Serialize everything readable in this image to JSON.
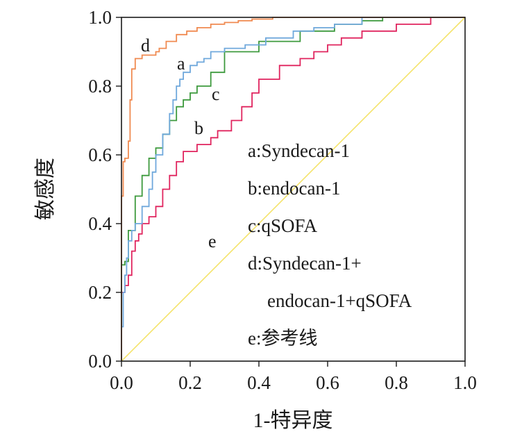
{
  "chart_data": {
    "type": "line",
    "xlabel": "1-特异度",
    "ylabel": "敏感度",
    "xlim": [
      0.0,
      1.0
    ],
    "ylim": [
      0.0,
      1.0
    ],
    "x_ticks": [
      "0.0",
      "0.2",
      "0.4",
      "0.6",
      "0.8",
      "1.0"
    ],
    "y_ticks": [
      "0.0",
      "0.2",
      "0.4",
      "0.6",
      "0.8",
      "1.0"
    ],
    "grid": false,
    "legend_position": "center-right",
    "legend": [
      "a:Syndecan-1",
      "b:endocan-1",
      "c:qSOFA",
      "d:Syndecan-1+",
      "endocan-1+qSOFA",
      "e:参考线"
    ],
    "series": [
      {
        "label": "d",
        "color": "#f08a50",
        "x": [
          0.0,
          0.0,
          0.005,
          0.005,
          0.01,
          0.01,
          0.02,
          0.02,
          0.025,
          0.025,
          0.03,
          0.03,
          0.04,
          0.04,
          0.06,
          0.06,
          0.1,
          0.1,
          0.11,
          0.11,
          0.13,
          0.13,
          0.16,
          0.16,
          0.19,
          0.19,
          0.22,
          0.22,
          0.26,
          0.26,
          0.3,
          0.3,
          0.34,
          0.34,
          0.38,
          0.38,
          0.44,
          0.44,
          0.5,
          0.5,
          0.66,
          0.66,
          1.0
        ],
        "y": [
          0.0,
          0.48,
          0.48,
          0.58,
          0.58,
          0.59,
          0.59,
          0.64,
          0.64,
          0.76,
          0.76,
          0.85,
          0.85,
          0.88,
          0.88,
          0.89,
          0.89,
          0.9,
          0.9,
          0.91,
          0.91,
          0.93,
          0.93,
          0.95,
          0.95,
          0.96,
          0.96,
          0.97,
          0.97,
          0.98,
          0.98,
          0.985,
          0.985,
          0.99,
          0.99,
          0.995,
          0.995,
          1.0,
          1.0,
          1.0,
          1.0,
          1.0,
          1.0
        ]
      },
      {
        "label": "a",
        "color": "#6fa8dc",
        "x": [
          0.0,
          0.0,
          0.005,
          0.005,
          0.01,
          0.01,
          0.015,
          0.015,
          0.02,
          0.02,
          0.03,
          0.03,
          0.04,
          0.04,
          0.06,
          0.06,
          0.08,
          0.08,
          0.09,
          0.09,
          0.1,
          0.1,
          0.12,
          0.12,
          0.14,
          0.14,
          0.15,
          0.15,
          0.16,
          0.16,
          0.17,
          0.17,
          0.18,
          0.18,
          0.2,
          0.2,
          0.22,
          0.22,
          0.24,
          0.24,
          0.26,
          0.26,
          0.3,
          0.3,
          0.36,
          0.36,
          0.42,
          0.42,
          0.5,
          0.5,
          0.56,
          0.56,
          0.62,
          0.62,
          0.7,
          0.7,
          0.76,
          0.76,
          1.0
        ],
        "y": [
          0.0,
          0.1,
          0.1,
          0.2,
          0.2,
          0.25,
          0.25,
          0.3,
          0.3,
          0.35,
          0.35,
          0.38,
          0.38,
          0.4,
          0.4,
          0.45,
          0.45,
          0.5,
          0.5,
          0.55,
          0.55,
          0.6,
          0.6,
          0.66,
          0.66,
          0.72,
          0.72,
          0.76,
          0.76,
          0.8,
          0.8,
          0.82,
          0.82,
          0.84,
          0.84,
          0.86,
          0.86,
          0.87,
          0.87,
          0.88,
          0.88,
          0.9,
          0.9,
          0.91,
          0.91,
          0.92,
          0.92,
          0.94,
          0.94,
          0.96,
          0.96,
          0.97,
          0.97,
          0.98,
          0.98,
          1.0,
          1.0,
          1.0,
          1.0
        ]
      },
      {
        "label": "c",
        "color": "#3d9a3d",
        "x": [
          0.0,
          0.0,
          0.01,
          0.01,
          0.02,
          0.02,
          0.04,
          0.04,
          0.06,
          0.06,
          0.08,
          0.08,
          0.1,
          0.1,
          0.12,
          0.12,
          0.14,
          0.14,
          0.16,
          0.16,
          0.18,
          0.18,
          0.2,
          0.2,
          0.22,
          0.22,
          0.26,
          0.26,
          0.3,
          0.3,
          0.4,
          0.4,
          0.52,
          0.52,
          0.62,
          0.62,
          0.7,
          0.7,
          0.76,
          0.76,
          1.0
        ],
        "y": [
          0.0,
          0.28,
          0.28,
          0.29,
          0.29,
          0.38,
          0.38,
          0.48,
          0.48,
          0.54,
          0.54,
          0.59,
          0.59,
          0.62,
          0.62,
          0.66,
          0.66,
          0.7,
          0.7,
          0.74,
          0.74,
          0.76,
          0.76,
          0.78,
          0.78,
          0.8,
          0.8,
          0.84,
          0.84,
          0.9,
          0.9,
          0.93,
          0.93,
          0.96,
          0.96,
          0.98,
          0.98,
          0.99,
          0.99,
          1.0,
          1.0
        ]
      },
      {
        "label": "b",
        "color": "#e0245e",
        "x": [
          0.0,
          0.0,
          0.01,
          0.01,
          0.02,
          0.02,
          0.03,
          0.03,
          0.04,
          0.04,
          0.05,
          0.05,
          0.06,
          0.06,
          0.08,
          0.08,
          0.1,
          0.1,
          0.12,
          0.12,
          0.14,
          0.14,
          0.16,
          0.16,
          0.18,
          0.18,
          0.22,
          0.22,
          0.26,
          0.26,
          0.28,
          0.28,
          0.32,
          0.32,
          0.35,
          0.35,
          0.38,
          0.38,
          0.4,
          0.4,
          0.46,
          0.46,
          0.52,
          0.52,
          0.56,
          0.56,
          0.6,
          0.6,
          0.64,
          0.64,
          0.7,
          0.7,
          0.8,
          0.8,
          0.9,
          0.9,
          1.0
        ],
        "y": [
          0.0,
          0.2,
          0.2,
          0.22,
          0.22,
          0.25,
          0.25,
          0.32,
          0.32,
          0.35,
          0.35,
          0.37,
          0.37,
          0.4,
          0.4,
          0.42,
          0.42,
          0.45,
          0.45,
          0.5,
          0.5,
          0.54,
          0.54,
          0.58,
          0.58,
          0.61,
          0.61,
          0.63,
          0.63,
          0.65,
          0.65,
          0.67,
          0.67,
          0.7,
          0.7,
          0.74,
          0.74,
          0.78,
          0.78,
          0.82,
          0.82,
          0.86,
          0.86,
          0.88,
          0.88,
          0.9,
          0.9,
          0.92,
          0.92,
          0.94,
          0.94,
          0.96,
          0.96,
          0.98,
          0.98,
          1.0,
          1.0
        ]
      },
      {
        "label": "e",
        "color": "#f5e36a",
        "x": [
          0.0,
          1.0
        ],
        "y": [
          0.0,
          1.0
        ]
      }
    ]
  },
  "colors": {
    "axis": "#1a1a1a",
    "background": "#ffffff"
  }
}
